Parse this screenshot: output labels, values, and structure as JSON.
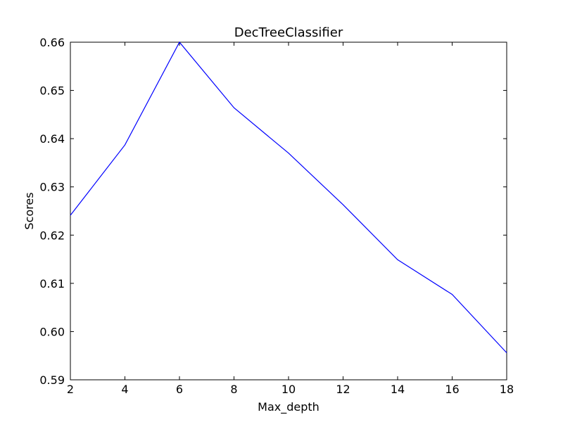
{
  "chart_data": {
    "type": "line",
    "title": "DecTreeClassifier",
    "xlabel": "Max_depth",
    "ylabel": "Scores",
    "xlim": [
      2,
      18
    ],
    "ylim": [
      0.59,
      0.66
    ],
    "x_ticks": [
      "2",
      "4",
      "6",
      "8",
      "10",
      "12",
      "14",
      "16",
      "18"
    ],
    "y_ticks": [
      "0.59",
      "0.60",
      "0.61",
      "0.62",
      "0.63",
      "0.64",
      "0.65",
      "0.66"
    ],
    "grid": false,
    "series": [
      {
        "color": "#0000ff",
        "x": [
          2,
          4,
          6,
          8,
          10,
          12,
          14,
          16,
          18
        ],
        "y": [
          0.6241,
          0.6387,
          0.66,
          0.6464,
          0.637,
          0.6263,
          0.6149,
          0.6077,
          0.5956
        ]
      }
    ]
  }
}
